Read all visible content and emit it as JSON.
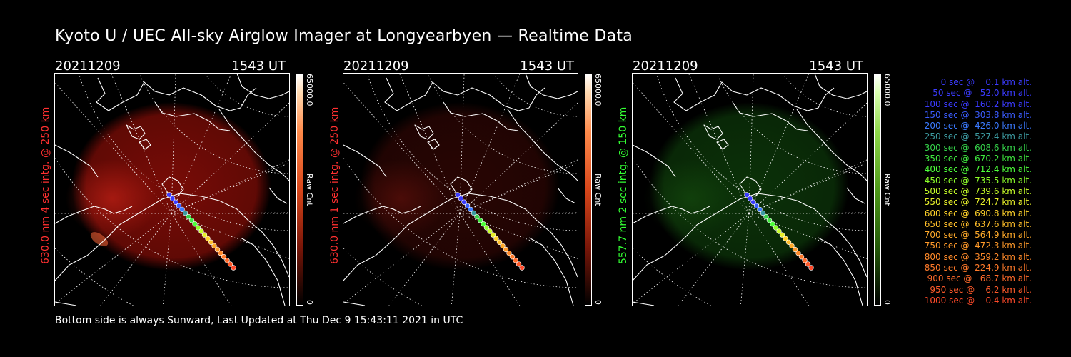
{
  "title": "Kyoto U / UEC All-sky Airglow Imager at Longyearbyen — Realtime Data",
  "panels": [
    {
      "date": "20211209",
      "time": "1543 UT",
      "side_label": "630.0 nm 4 sec intg. @ 250 km",
      "cbar_max": "65000.0",
      "cbar_min": "0",
      "cbar_unit": "Raw Cnt",
      "color": "#ff3030",
      "glow": "#9a0f08",
      "glow_strength": 0.78
    },
    {
      "date": "20211209",
      "time": "1543 UT",
      "side_label": "630.0 nm 1 sec intg. @ 250 km",
      "cbar_max": "65000.0",
      "cbar_min": "0",
      "cbar_unit": "Raw Cnt",
      "color": "#ff3030",
      "glow": "#4a0a06",
      "glow_strength": 0.55
    },
    {
      "date": "20211209",
      "time": "1543 UT",
      "side_label": "557.7 nm 2 sec intg. @ 150 km",
      "cbar_max": "65000.0",
      "cbar_min": "0",
      "cbar_unit": "Raw Cnt",
      "color": "#33ff33",
      "glow": "#0d3a0a",
      "glow_strength": 0.85
    }
  ],
  "footer": "Bottom side is always Sunward, Last Updated at Thu Dec  9 15:43:11 2021 in UTC",
  "legend": [
    {
      "text": "   0 sec @    0.1 km alt.",
      "color": "#3b3bff"
    },
    {
      "text": "  50 sec @   52.0 km alt.",
      "color": "#3b3bff"
    },
    {
      "text": " 100 sec @  160.2 km alt.",
      "color": "#3b3bff"
    },
    {
      "text": " 150 sec @  303.8 km alt.",
      "color": "#3b5cff"
    },
    {
      "text": " 200 sec @  426.0 km alt.",
      "color": "#3b7aff"
    },
    {
      "text": " 250 sec @  527.4 km alt.",
      "color": "#3c9aa0"
    },
    {
      "text": " 300 sec @  608.6 km alt.",
      "color": "#35d24a"
    },
    {
      "text": " 350 sec @  670.2 km alt.",
      "color": "#3fe83f"
    },
    {
      "text": " 400 sec @  712.4 km alt.",
      "color": "#4dff3a"
    },
    {
      "text": " 450 sec @  735.5 km alt.",
      "color": "#8cff2a"
    },
    {
      "text": " 500 sec @  739.6 km alt.",
      "color": "#c8ff2a"
    },
    {
      "text": " 550 sec @  724.7 km alt.",
      "color": "#e8f02a"
    },
    {
      "text": " 600 sec @  690.8 km alt.",
      "color": "#ffd22a"
    },
    {
      "text": " 650 sec @  637.6 km alt.",
      "color": "#ffbe2a"
    },
    {
      "text": " 700 sec @  564.9 km alt.",
      "color": "#ffaa2a"
    },
    {
      "text": " 750 sec @  472.3 km alt.",
      "color": "#ff9a2a"
    },
    {
      "text": " 800 sec @  359.2 km alt.",
      "color": "#ff8a2a"
    },
    {
      "text": " 850 sec @  224.9 km alt.",
      "color": "#ff7a2a"
    },
    {
      "text": " 900 sec @   68.7 km alt.",
      "color": "#ff6a2a"
    },
    {
      "text": " 950 sec @    6.2 km alt.",
      "color": "#ff5a2a"
    },
    {
      "text": "1000 sec @    0.4 km alt.",
      "color": "#ff4a2a"
    }
  ]
}
